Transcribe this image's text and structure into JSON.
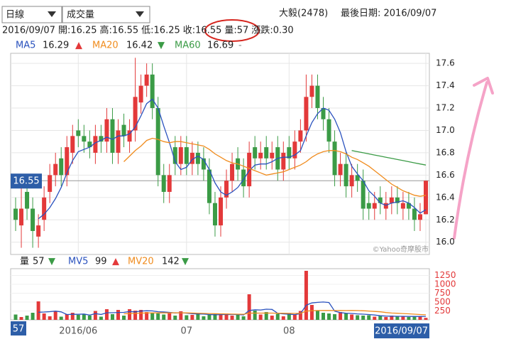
{
  "header": {
    "period": "日線",
    "indicator": "成交量",
    "stock": "大毅(2478)",
    "last_date": "最後日期: 2016/09/07",
    "info": [
      "2016/09/07",
      "開:16.25",
      "高:16.55",
      "低:16.25",
      "收:16.55",
      "量:57",
      "漲跌:0.30"
    ]
  },
  "chart_data": [
    {
      "type": "candlestick",
      "up_color": "#e3393a",
      "down_color": "#3b9b46",
      "ylim": [
        15.89,
        17.69
      ],
      "yticks": [
        {
          "value": 16,
          "label": "16.0"
        },
        16.2,
        16.4,
        16.6,
        16.8,
        {
          "value": 17,
          "label": "17.0"
        },
        17.2,
        17.4,
        17.6
      ],
      "grid": true,
      "watermark": "©Yahoo奇摩股市",
      "open": [
        16.3,
        16.15,
        16.45,
        16.3,
        16.05,
        16.2,
        16.45,
        16.6,
        16.75,
        16.6,
        16.8,
        17.0,
        16.95,
        16.9,
        16.8,
        16.95,
        16.9,
        17.1,
        16.8,
        17.05,
        16.9,
        17.0,
        17.25,
        17.4,
        17.5,
        17.2,
        16.6,
        16.45,
        16.85,
        16.7,
        16.85,
        16.7,
        16.8,
        16.75,
        16.65,
        16.35,
        16.15,
        16.4,
        16.55,
        16.75,
        16.65,
        16.5,
        16.85,
        16.75,
        16.85,
        16.75,
        16.85,
        16.65,
        16.85,
        16.75,
        16.9,
        17.0,
        17.3,
        17.4,
        17.2,
        17.1,
        16.9,
        16.6,
        16.7,
        16.5,
        16.6,
        16.55,
        16.35,
        16.3,
        16.4,
        16.3,
        16.35,
        16.4,
        16.3,
        16.35,
        16.3,
        16.2,
        16.25
      ],
      "high": [
        16.4,
        16.6,
        16.55,
        16.4,
        16.25,
        16.5,
        16.7,
        16.8,
        16.85,
        16.95,
        17.05,
        17.1,
        17.05,
        17.0,
        17.05,
        17.05,
        17.2,
        17.2,
        17.1,
        17.15,
        17.1,
        17.65,
        17.5,
        17.6,
        17.6,
        17.3,
        16.7,
        16.7,
        16.95,
        16.95,
        16.95,
        16.9,
        16.9,
        16.85,
        16.75,
        16.45,
        16.5,
        16.65,
        16.8,
        16.85,
        16.75,
        16.9,
        16.95,
        16.9,
        16.95,
        16.9,
        16.95,
        16.9,
        16.95,
        17.0,
        17.1,
        17.5,
        17.5,
        17.5,
        17.3,
        17.2,
        17.0,
        16.8,
        16.8,
        16.7,
        16.7,
        16.65,
        16.45,
        16.45,
        16.5,
        16.45,
        16.5,
        16.5,
        16.45,
        16.45,
        16.4,
        16.35,
        16.55
      ],
      "low": [
        16.1,
        15.95,
        16.2,
        15.95,
        15.95,
        16.1,
        16.35,
        16.5,
        16.5,
        16.5,
        16.7,
        16.85,
        16.8,
        16.75,
        16.7,
        16.8,
        16.8,
        16.7,
        16.7,
        16.85,
        16.8,
        16.9,
        17.15,
        17.3,
        17.1,
        16.5,
        16.35,
        16.35,
        16.6,
        16.6,
        16.6,
        16.6,
        16.6,
        16.55,
        16.25,
        16.05,
        16.05,
        16.3,
        16.45,
        16.55,
        16.4,
        16.4,
        16.65,
        16.65,
        16.65,
        16.65,
        16.55,
        16.55,
        16.65,
        16.65,
        16.8,
        16.9,
        17.2,
        17.1,
        17.0,
        16.8,
        16.5,
        16.5,
        16.4,
        16.4,
        16.45,
        16.2,
        16.2,
        16.2,
        16.25,
        16.2,
        16.25,
        16.25,
        16.2,
        16.2,
        16.1,
        16.1,
        16.25
      ],
      "close": [
        16.2,
        16.3,
        16.3,
        16.1,
        16.15,
        16.4,
        16.6,
        16.7,
        16.6,
        16.85,
        16.95,
        16.95,
        16.9,
        16.85,
        16.95,
        16.9,
        17.1,
        16.8,
        17.0,
        16.95,
        17.0,
        17.3,
        17.4,
        17.5,
        17.2,
        16.6,
        16.45,
        16.6,
        16.7,
        16.85,
        16.7,
        16.8,
        16.7,
        16.65,
        16.35,
        16.15,
        16.4,
        16.55,
        16.7,
        16.65,
        16.5,
        16.8,
        16.75,
        16.8,
        16.75,
        16.8,
        16.65,
        16.8,
        16.75,
        16.9,
        17.0,
        17.3,
        17.4,
        17.2,
        17.1,
        16.9,
        16.6,
        16.7,
        16.5,
        16.6,
        16.55,
        16.3,
        16.3,
        16.35,
        16.35,
        16.35,
        16.4,
        16.35,
        16.35,
        16.3,
        16.2,
        16.25,
        16.55
      ],
      "series": [
        {
          "name": "MA5",
          "color": "#2a52be",
          "marker": "▲",
          "marker_color": "#e3393a",
          "values": [
            null,
            null,
            null,
            null,
            16.21,
            16.25,
            16.31,
            16.39,
            16.49,
            16.62,
            16.73,
            16.81,
            16.83,
            16.85,
            16.89,
            16.91,
            16.94,
            16.92,
            16.95,
            16.95,
            16.97,
            17.03,
            17.13,
            17.24,
            17.28,
            17.2,
            17.04,
            16.89,
            16.72,
            16.65,
            16.67,
            16.74,
            16.77,
            16.74,
            16.65,
            16.53,
            16.45,
            16.42,
            16.45,
            16.49,
            16.56,
            16.64,
            16.69,
            16.7,
            16.7,
            16.72,
            16.75,
            16.76,
            16.76,
            16.78,
            16.82,
            16.95,
            17.07,
            17.15,
            17.2,
            17.18,
            17.1,
            16.98,
            16.81,
            16.68,
            16.61,
            16.55,
            16.46,
            16.41,
            16.35,
            16.33,
            16.35,
            16.36,
            16.37,
            16.35,
            16.31,
            16.26,
            16.29
          ]
        },
        {
          "name": "MA20",
          "color": "#f08c1e",
          "marker": "▼",
          "marker_color": "#3b9b46",
          "values": [
            null,
            null,
            null,
            null,
            null,
            null,
            null,
            null,
            null,
            null,
            null,
            null,
            null,
            null,
            null,
            null,
            null,
            null,
            null,
            16.72,
            16.77,
            16.82,
            16.86,
            16.91,
            16.93,
            16.92,
            16.9,
            16.89,
            16.9,
            16.9,
            16.89,
            16.88,
            16.87,
            16.86,
            16.83,
            16.79,
            16.76,
            16.73,
            16.71,
            16.7,
            16.68,
            16.66,
            16.64,
            16.62,
            16.6,
            16.61,
            16.62,
            16.63,
            16.65,
            16.67,
            16.69,
            16.72,
            16.76,
            16.79,
            16.81,
            16.82,
            16.82,
            16.81,
            16.79,
            16.76,
            16.74,
            16.71,
            16.68,
            16.64,
            16.6,
            16.56,
            16.52,
            16.49,
            16.46,
            16.44,
            16.42,
            16.41,
            16.42
          ]
        },
        {
          "name": "MA60",
          "color": "#3b9b46",
          "marker": "-",
          "marker_color": "#888888",
          "values": [
            null,
            null,
            null,
            null,
            null,
            null,
            null,
            null,
            null,
            null,
            null,
            null,
            null,
            null,
            null,
            null,
            null,
            null,
            null,
            null,
            null,
            null,
            null,
            null,
            null,
            null,
            null,
            null,
            null,
            null,
            null,
            null,
            null,
            null,
            null,
            null,
            null,
            null,
            null,
            null,
            null,
            null,
            null,
            null,
            null,
            null,
            null,
            null,
            null,
            null,
            null,
            null,
            null,
            null,
            null,
            null,
            null,
            null,
            null,
            16.82,
            16.81,
            16.8,
            16.79,
            16.78,
            16.77,
            16.76,
            16.75,
            16.74,
            16.73,
            16.72,
            16.71,
            16.7,
            16.69
          ]
        }
      ]
    },
    {
      "type": "volume",
      "name": "量",
      "marker": "▼",
      "marker_color": "#3b9b46",
      "categories": [
        null,
        null,
        null,
        null,
        null,
        null,
        null,
        null,
        null,
        null,
        null,
        "2016/06",
        null,
        null,
        null,
        null,
        null,
        null,
        null,
        null,
        null,
        null,
        null,
        null,
        null,
        null,
        null,
        null,
        null,
        null,
        "07",
        null,
        null,
        null,
        null,
        null,
        null,
        null,
        null,
        null,
        null,
        null,
        null,
        null,
        null,
        null,
        null,
        null,
        "08",
        null,
        null,
        null,
        null,
        null,
        null,
        null,
        null,
        null,
        null,
        null,
        null,
        null,
        null,
        null,
        null,
        null,
        null,
        null,
        null,
        null,
        null,
        null,
        "2016/09/07"
      ],
      "ylim": [
        0,
        1400
      ],
      "yticks": [
        250,
        500,
        750,
        1000,
        1250
      ],
      "tick_color": "#e3393a",
      "values": [
        150,
        80,
        120,
        200,
        520,
        180,
        100,
        230,
        90,
        160,
        200,
        140,
        150,
        120,
        250,
        90,
        300,
        160,
        280,
        120,
        300,
        260,
        280,
        220,
        200,
        180,
        150,
        220,
        120,
        240,
        130,
        140,
        180,
        100,
        150,
        160,
        150,
        180,
        120,
        140,
        100,
        720,
        260,
        150,
        220,
        120,
        170,
        100,
        180,
        150,
        250,
        1380,
        420,
        260,
        200,
        180,
        160,
        220,
        180,
        150,
        130,
        120,
        130,
        90,
        110,
        80,
        120,
        100,
        90,
        80,
        110,
        90,
        57
      ],
      "series": [
        {
          "name": "MV5",
          "color": "#2a52be",
          "marker": "▲",
          "marker_color": "#e3393a",
          "values": [
            null,
            null,
            null,
            null,
            214,
            220,
            230,
            246,
            224,
            150,
            156,
            156,
            164,
            134,
            176,
            152,
            200,
            200,
            208,
            210,
            234,
            224,
            248,
            256,
            252,
            228,
            222,
            210,
            194,
            202,
            188,
            172,
            166,
            162,
            150,
            142,
            148,
            154,
            150,
            150,
            138,
            262,
            284,
            278,
            300,
            294,
            184,
            168,
            158,
            148,
            174,
            412,
            476,
            492,
            502,
            488,
            244,
            204,
            188,
            180,
            168,
            160,
            150,
            136,
            116,
            106,
            104,
            100,
            100,
            96,
            98,
            96,
            99
          ]
        },
        {
          "name": "MV20",
          "color": "#f08c1e",
          "marker": "▼",
          "marker_color": "#3b9b46",
          "values": [
            null,
            null,
            null,
            null,
            null,
            null,
            null,
            null,
            null,
            null,
            null,
            null,
            null,
            null,
            null,
            null,
            null,
            null,
            null,
            170,
            176,
            183,
            190,
            195,
            198,
            196,
            198,
            194,
            200,
            198,
            196,
            192,
            188,
            182,
            178,
            174,
            170,
            166,
            162,
            160,
            158,
            188,
            190,
            190,
            192,
            190,
            188,
            186,
            184,
            182,
            184,
            246,
            258,
            262,
            264,
            264,
            262,
            264,
            262,
            264,
            262,
            256,
            248,
            236,
            226,
            206,
            192,
            186,
            178,
            170,
            160,
            150,
            142
          ]
        }
      ]
    }
  ]
}
